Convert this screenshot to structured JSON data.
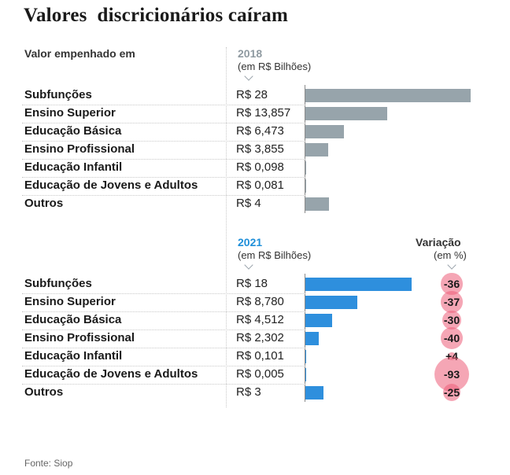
{
  "title": "Valores  discricionários caíram",
  "header_label": "Valor empenhado em",
  "colors": {
    "bar_2018": "#97a4ab",
    "bar_2021": "#2e8fdd",
    "year_2018": "#8f9aa1",
    "year_2021": "#1f8fd9",
    "bubble": "#ec5c78"
  },
  "chart_data": [
    {
      "type": "bar",
      "title": "2018",
      "unit_label": "(em R$ Bilhões)",
      "categories": [
        "Subfunções",
        "Ensino Superior",
        "Educação Básica",
        "Ensino Profissional",
        "Educação Infantil",
        "Educação de Jovens e Adultos",
        "Outros"
      ],
      "values": [
        28,
        13.857,
        6.473,
        3.855,
        0.098,
        0.081,
        4
      ],
      "value_labels": [
        "R$ 28",
        "R$ 13,857",
        "R$ 6,473",
        "R$ 3,855",
        "R$ 0,098",
        "R$ 0,081",
        "R$ 4"
      ],
      "xlim": [
        0,
        28
      ]
    },
    {
      "type": "bar",
      "title": "2021",
      "unit_label": "(em R$ Bilhões)",
      "categories": [
        "Subfunções",
        "Ensino Superior",
        "Educação Básica",
        "Ensino Profissional",
        "Educação Infantil",
        "Educação de Jovens e Adultos",
        "Outros"
      ],
      "values": [
        18,
        8.78,
        4.512,
        2.302,
        0.101,
        0.005,
        3
      ],
      "value_labels": [
        "R$ 18",
        "R$ 8,780",
        "R$ 4,512",
        "R$ 2,302",
        "R$ 0,101",
        "R$ 0,005",
        "R$ 3"
      ],
      "xlim": [
        0,
        28
      ],
      "variation": {
        "title": "Variação",
        "unit_label": "(em %)",
        "values": [
          -36,
          -37,
          -30,
          -40,
          4,
          -93,
          -25
        ],
        "labels": [
          "-36",
          "-37",
          "-30",
          "-40",
          "+4",
          "-93",
          "-25"
        ]
      }
    }
  ],
  "source": "Fonte: Siop"
}
